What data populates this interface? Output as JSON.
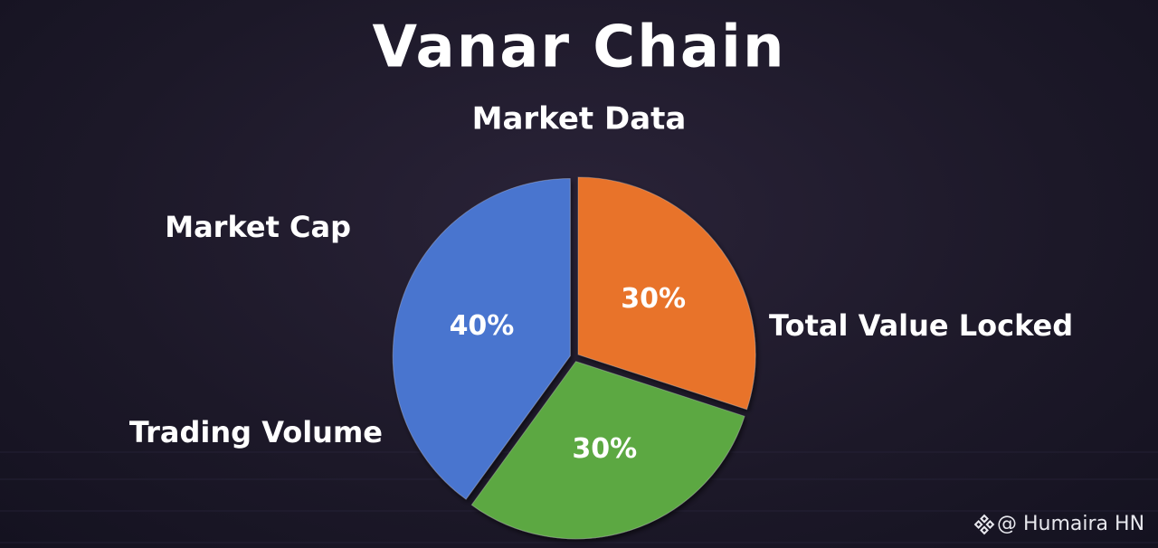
{
  "chart_data": {
    "type": "pie",
    "title": "Vanar Chain",
    "subtitle": "Market Data",
    "categories": [
      "Total Value Locked",
      "Trading Volume",
      "Market Cap"
    ],
    "values": [
      30,
      30,
      40
    ],
    "value_labels": [
      "30%",
      "30%",
      "40%"
    ],
    "colors": [
      "#e8732a",
      "#5ca843",
      "#4a74cf"
    ]
  },
  "watermark": "@ Humaira HN"
}
